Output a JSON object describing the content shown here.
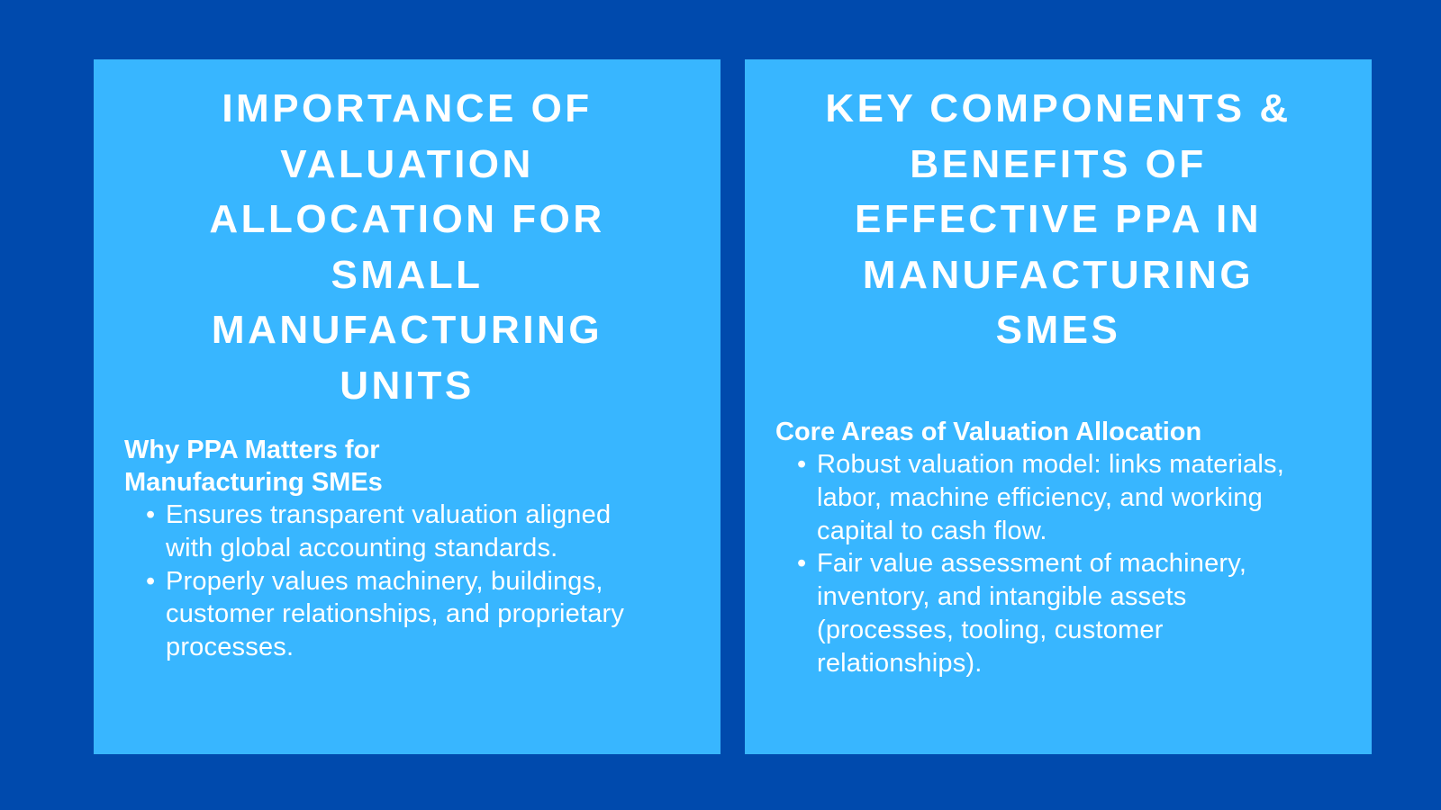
{
  "colors": {
    "background": "#004aad",
    "panel": "#38b6ff",
    "text": "#ffffff"
  },
  "left": {
    "title": "IMPORTANCE OF VALUATION ALLOCATION FOR SMALL MANUFACTURING UNITS",
    "subheading": "Why PPA Matters for Manufacturing SMEs",
    "bullets": [
      "Ensures transparent valuation aligned with global accounting standards.",
      "Properly values machinery, buildings, customer relationships, and proprietary processes."
    ]
  },
  "right": {
    "title": "KEY COMPONENTS & BENEFITS OF EFFECTIVE PPA IN MANUFACTURING SMES",
    "subheading": "Core Areas of Valuation Allocation",
    "bullets": [
      "Robust valuation model: links materials, labor, machine efficiency, and working capital to cash flow.",
      "Fair value assessment of machinery, inventory, and intangible assets (processes, tooling, customer relationships)."
    ]
  },
  "bullet_glyph": "•"
}
